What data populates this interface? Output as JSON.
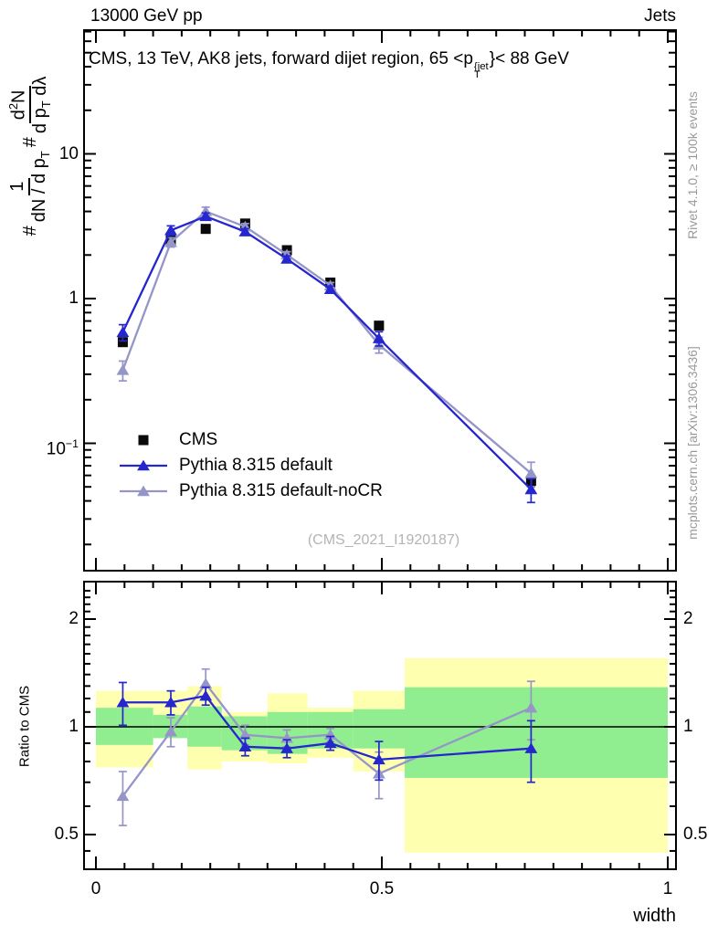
{
  "header": {
    "top_left": "13000 GeV pp",
    "top_right": "Jets"
  },
  "title": {
    "parts": [
      {
        "t": "CMS, 13 TeV, AK8 jets, forward dijet region, 65 <p"
      },
      {
        "stack": {
          "sup": "{jet",
          "sub": "T"
        }
      },
      {
        "t": "}< 88 GeV"
      }
    ]
  },
  "ylabel": {
    "parts": [
      {
        "t": "# "
      },
      {
        "frac": {
          "num": [
            {
              "t": "1"
            }
          ],
          "den": [
            {
              "t": "dN / d p"
            },
            {
              "sub": "T"
            }
          ]
        }
      },
      {
        "t": " # "
      },
      {
        "frac": {
          "num": [
            {
              "t": "d"
            },
            {
              "sup": "2"
            },
            {
              "t": "N"
            }
          ],
          "den": [
            {
              "t": "d p"
            },
            {
              "sub": "T"
            },
            {
              "t": " dλ"
            }
          ]
        }
      }
    ]
  },
  "xlabel": "width",
  "ratio_label": "Ratio to CMS",
  "watermark": "(CMS_2021_I1920187)",
  "credits": {
    "top": "Rivet 4.1.0, ≥ 100k events",
    "bottom": "mcplots.cern.ch [arXiv:1306.3436]"
  },
  "legend": [
    {
      "label": "CMS"
    },
    {
      "label": "Pythia 8.315 default"
    },
    {
      "label": "Pythia 8.315 default-noCR"
    }
  ],
  "colors": {
    "cms": "#0a0a0a",
    "pythia_default": "#2626cf",
    "pythia_nocr": "#9595c8",
    "band_yellow": "#ffffb0",
    "band_green": "#90ee90",
    "frame": "#000000",
    "watermark_gray": "#b4b4b4",
    "credits_gray": "#999999"
  },
  "chart_data": {
    "type": "line",
    "title": "CMS, 13 TeV, AK8 jets, forward dijet region, 65 < pT^{jet} < 88 GeV",
    "xlabel": "width",
    "ylabel": "# 1/(dN/dpT) # d2N/(dpT dlambda)",
    "ylabel_ratio": "Ratio to CMS",
    "xlim": [
      0,
      1
    ],
    "ylim_main": [
      0.013,
      71
    ],
    "ylim_ratio": [
      0.4,
      2.54
    ],
    "log_y": true,
    "x_points": [
      0.047,
      0.131,
      0.192,
      0.261,
      0.334,
      0.41,
      0.495,
      0.761
    ],
    "bin_edges": [
      0,
      0.1,
      0.16,
      0.22,
      0.3,
      0.37,
      0.45,
      0.54,
      1.0
    ],
    "series": [
      {
        "name": "CMS",
        "marker": "square",
        "color_key": "cms",
        "values": [
          0.5,
          2.53,
          3.03,
          3.3,
          2.16,
          1.29,
          0.65,
          0.055
        ],
        "errors": [
          0.03,
          0.1,
          0.12,
          0.12,
          0.08,
          0.05,
          0.03,
          0.005
        ],
        "line": false
      },
      {
        "name": "Pythia 8.315 default-noCR",
        "marker": "triangle",
        "color_key": "pythia_nocr",
        "values": [
          0.32,
          2.45,
          4.0,
          3.14,
          2.01,
          1.23,
          0.48,
          0.062
        ],
        "errors": [
          0.05,
          0.18,
          0.28,
          0.16,
          0.1,
          0.06,
          0.06,
          0.012
        ],
        "line": true
      },
      {
        "name": "Pythia 8.315 default",
        "marker": "triangle",
        "color_key": "pythia_default",
        "values": [
          0.585,
          2.96,
          3.7,
          2.9,
          1.88,
          1.16,
          0.53,
          0.048
        ],
        "errors": [
          0.075,
          0.22,
          0.2,
          0.14,
          0.09,
          0.06,
          0.06,
          0.009
        ],
        "line": true
      }
    ],
    "ratio": {
      "baseline": 1,
      "series": [
        {
          "name": "Pythia 8.315 default-noCR",
          "color_key": "pythia_nocr",
          "marker": "triangle",
          "values": [
            0.64,
            0.97,
            1.32,
            0.95,
            0.93,
            0.95,
            0.74,
            1.13
          ],
          "errors": [
            0.11,
            0.09,
            0.13,
            0.06,
            0.05,
            0.04,
            0.11,
            0.21
          ]
        },
        {
          "name": "Pythia 8.315 default",
          "color_key": "pythia_default",
          "marker": "triangle",
          "values": [
            1.17,
            1.17,
            1.22,
            0.88,
            0.87,
            0.9,
            0.81,
            0.87
          ],
          "errors": [
            0.16,
            0.09,
            0.07,
            0.05,
            0.05,
            0.04,
            0.1,
            0.17
          ]
        }
      ],
      "bands": {
        "yellow": [
          [
            0.77,
            1.26
          ],
          [
            0.93,
            1.26
          ],
          [
            0.76,
            1.3
          ],
          [
            0.8,
            1.1
          ],
          [
            0.79,
            1.24
          ],
          [
            0.82,
            1.13
          ],
          [
            0.75,
            1.26
          ],
          [
            0.445,
            1.555
          ]
        ],
        "green": [
          [
            0.89,
            1.13
          ],
          [
            0.93,
            1.08
          ],
          [
            0.88,
            1.14
          ],
          [
            0.86,
            1.07
          ],
          [
            0.84,
            1.1
          ],
          [
            0.87,
            1.1
          ],
          [
            0.87,
            1.12
          ],
          [
            0.72,
            1.29
          ]
        ]
      }
    },
    "axes": {
      "x": {
        "ticks": [
          {
            "v": 0,
            "label": "0"
          },
          {
            "v": 0.5,
            "label": "0.5"
          },
          {
            "v": 1,
            "label": "1"
          }
        ],
        "minor_step": 0.05
      },
      "y_main": {
        "ticks": [
          {
            "v": 10,
            "parts": [
              {
                "t": "10"
              }
            ]
          },
          {
            "v": 1,
            "parts": [
              {
                "t": "1"
              }
            ]
          },
          {
            "v": 0.1,
            "parts": [
              {
                "t": "10"
              },
              {
                "sup": "−1"
              }
            ]
          }
        ]
      },
      "y_ratio": {
        "ticks": [
          {
            "v": 2,
            "label": "2"
          },
          {
            "v": 1,
            "label": "1"
          },
          {
            "v": 0.5,
            "label": "0.5"
          }
        ],
        "minor": [
          0.45,
          0.6,
          0.7,
          0.8,
          0.9,
          1.1,
          1.2,
          1.3,
          1.4,
          1.5,
          1.6,
          1.7,
          1.8,
          1.9,
          2.1,
          2.2,
          2.3,
          2.4
        ]
      }
    }
  }
}
